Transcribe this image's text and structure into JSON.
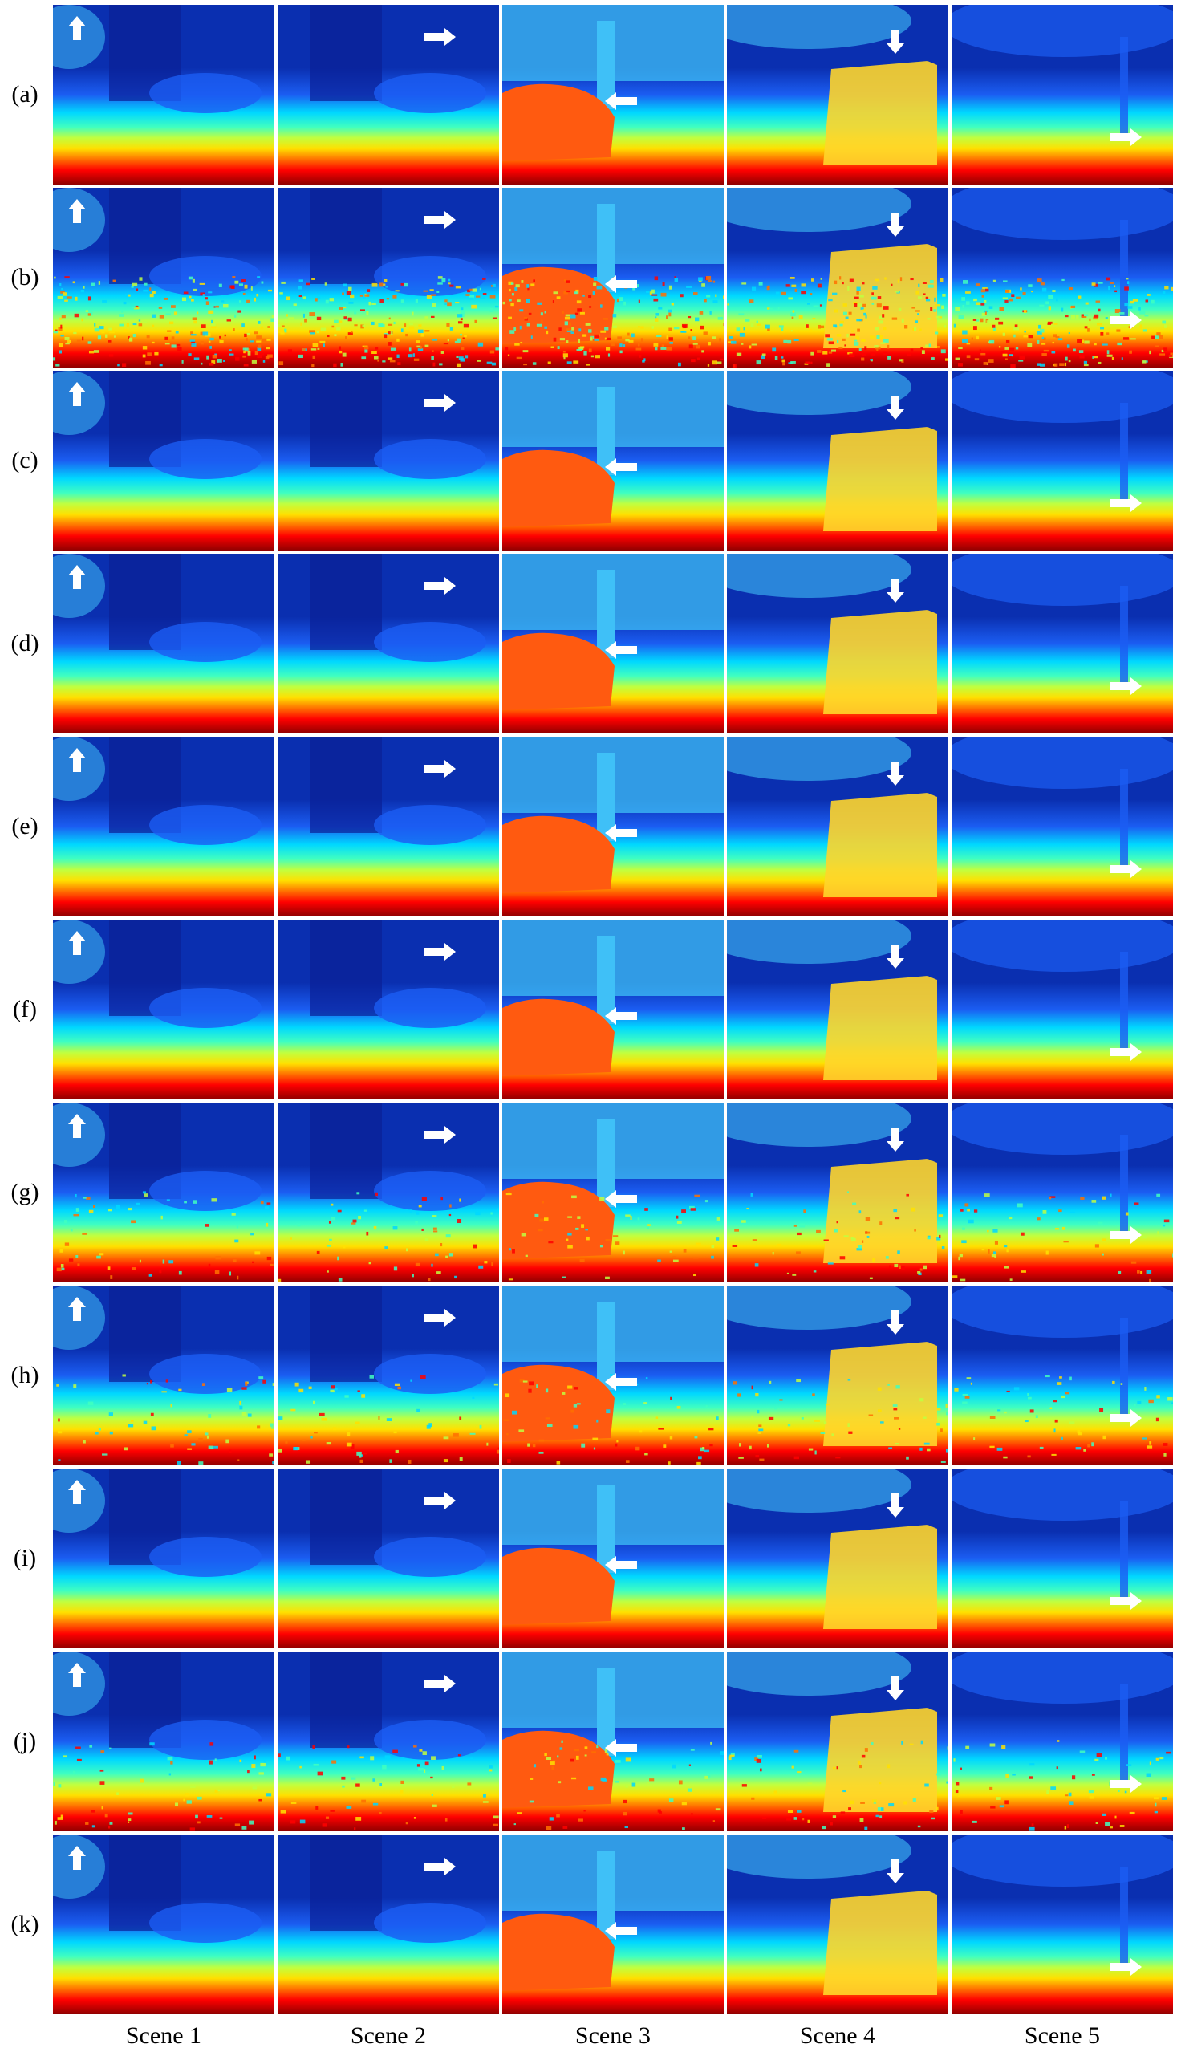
{
  "row_labels": [
    "(a)",
    "(b)",
    "(c)",
    "(d)",
    "(e)",
    "(f)",
    "(g)",
    "(h)",
    "(i)",
    "(j)",
    "(k)"
  ],
  "column_labels": [
    "Scene 1",
    "Scene 2",
    "Scene 3",
    "Scene 4",
    "Scene 5"
  ],
  "arrow_directions": [
    "up",
    "right",
    "left",
    "down",
    "right"
  ],
  "colormap": [
    "#00008f",
    "#0000ff",
    "#0070ff",
    "#00d8ff",
    "#40ffc0",
    "#c0ff40",
    "#ffe000",
    "#ff7000",
    "#ff0000",
    "#900000"
  ],
  "colors": {
    "far": "#0a2fb0",
    "mid": "#1b5df2",
    "sky": "#3fc0f7",
    "near": "#ffd52a",
    "close": "#ff5a10",
    "nearest": "#8a0000",
    "arrow": "#ffffff"
  }
}
